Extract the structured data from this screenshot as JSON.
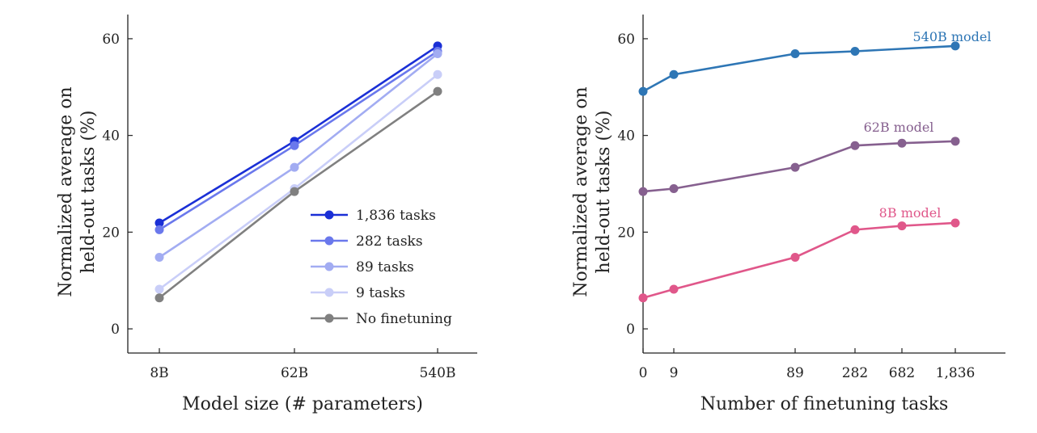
{
  "chart_data": [
    {
      "type": "line",
      "xlabel": "Model size (# parameters)",
      "ylabel_lines": [
        "Normalized average on",
        "held-out tasks (%)"
      ],
      "categories": [
        "8B",
        "62B",
        "540B"
      ],
      "ylim": [
        -5,
        65
      ],
      "yticks": [
        0,
        20,
        40,
        60
      ],
      "grid": false,
      "legend_position": "bottom-right",
      "series": [
        {
          "name": "1,836 tasks",
          "color": "#1a2fd6",
          "values": [
            21.9,
            38.8,
            58.5
          ]
        },
        {
          "name": "282 tasks",
          "color": "#6a78ec",
          "values": [
            20.5,
            37.9,
            57.4
          ]
        },
        {
          "name": "89 tasks",
          "color": "#a2acf2",
          "values": [
            14.8,
            33.4,
            56.9
          ]
        },
        {
          "name": "9 tasks",
          "color": "#c9cef8",
          "values": [
            8.2,
            29.0,
            52.6
          ]
        },
        {
          "name": "No finetuning",
          "color": "#808080",
          "values": [
            6.4,
            28.4,
            49.1
          ]
        }
      ]
    },
    {
      "type": "line",
      "xlabel": "Number of finetuning tasks",
      "ylabel_lines": [
        "Normalized average on",
        "held-out tasks (%)"
      ],
      "categories": [
        "0",
        "9",
        "89",
        "282",
        "682",
        "1,836"
      ],
      "ylim": [
        -5,
        65
      ],
      "yticks": [
        0,
        20,
        40,
        60
      ],
      "grid": false,
      "series": [
        {
          "name": "540B model",
          "color": "#2e76b5",
          "values": [
            49.1,
            52.6,
            56.9,
            57.4,
            null,
            58.5
          ]
        },
        {
          "name": "62B model",
          "color": "#86608f",
          "values": [
            28.4,
            29.0,
            33.4,
            37.9,
            38.4,
            38.8
          ]
        },
        {
          "name": "8B model",
          "color": "#e0578a",
          "values": [
            6.4,
            8.2,
            14.8,
            20.5,
            21.3,
            21.9
          ]
        }
      ]
    }
  ]
}
